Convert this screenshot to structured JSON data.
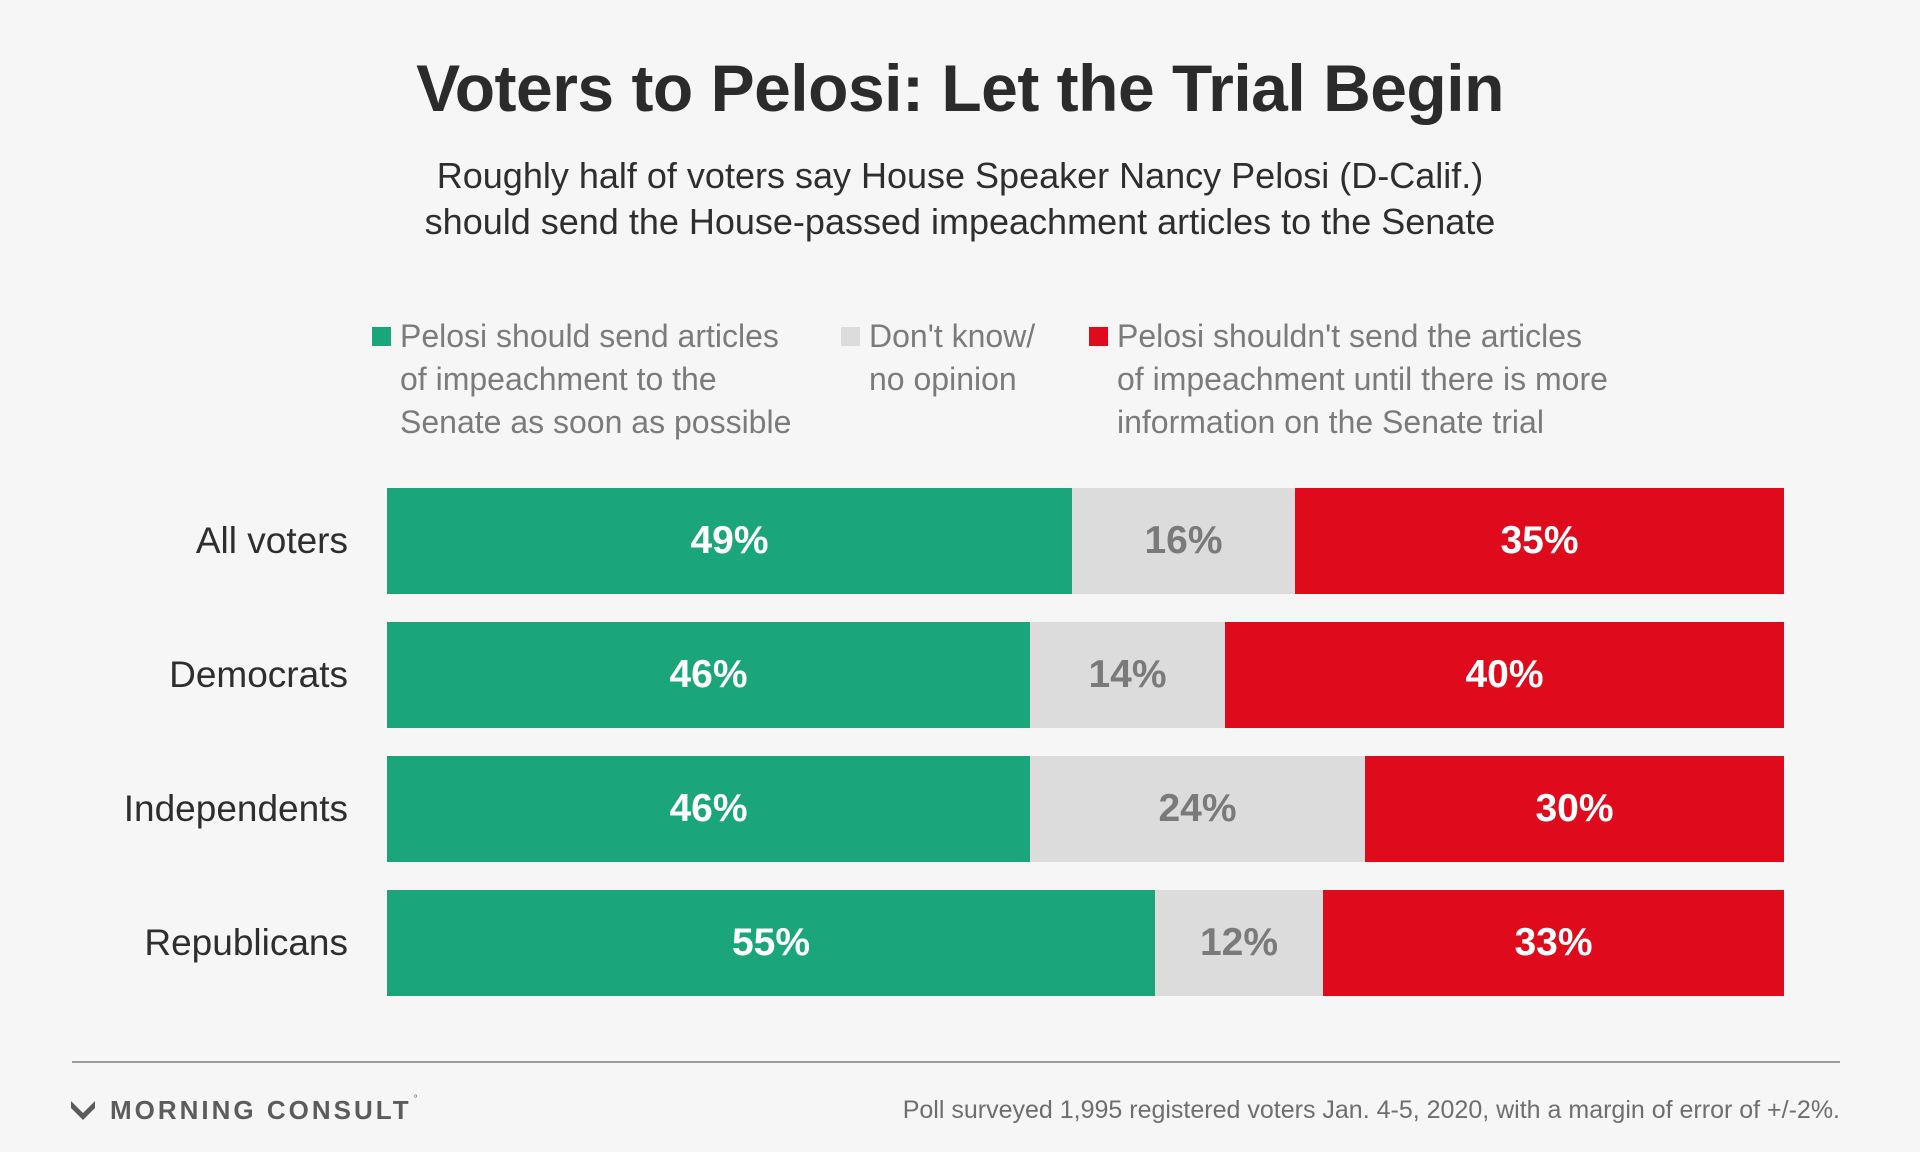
{
  "chart_data": {
    "type": "bar",
    "orientation": "horizontal",
    "stacked": true,
    "title": "Voters to Pelosi: Let the Trial Begin",
    "subtitle": [
      "Roughly half of voters say House Speaker Nancy Pelosi (D-Calif.)",
      "should send the House-passed impeachment articles to the Senate"
    ],
    "legend_placement": "top",
    "categories": [
      "All voters",
      "Democrats",
      "Independents",
      "Republicans"
    ],
    "series": [
      {
        "name": "Pelosi should send articles of impeachment to the Senate as soon as possible",
        "name_lines": [
          "Pelosi should send articles",
          "of impeachment to the",
          "Senate as soon as possible"
        ],
        "color": "#1ba57a",
        "label_color": "#ffffff",
        "values": [
          49,
          46,
          46,
          55
        ]
      },
      {
        "name": "Don't know/ no opinion",
        "name_lines": [
          "Don't know/",
          "no opinion"
        ],
        "color": "#dcdcdc",
        "label_color": "#7a7a7a",
        "values": [
          16,
          14,
          24,
          12
        ]
      },
      {
        "name": "Pelosi shouldn't send the articles of impeachment until there is more information on the Senate trial",
        "name_lines": [
          "Pelosi shouldn't send the articles",
          "of impeachment until there is more",
          "information on the Senate trial"
        ],
        "color": "#df0b1c",
        "label_color": "#ffffff",
        "values": [
          35,
          40,
          30,
          33
        ]
      }
    ],
    "value_suffix": "%",
    "xlim": [
      0,
      100
    ],
    "grid": false
  },
  "footer": {
    "logo_text": "MORNING CONSULT",
    "logo_mark": "morning-consult-m-icon",
    "note": "Poll surveyed 1,995 registered voters Jan. 4-5, 2020, with a margin of error of +/-2%."
  }
}
